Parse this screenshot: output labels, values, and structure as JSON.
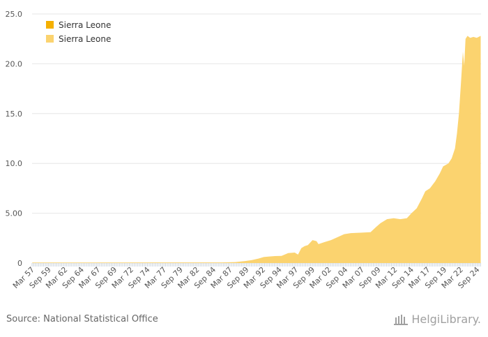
{
  "chart_data": {
    "type": "area",
    "title": "",
    "xlabel": "",
    "ylabel": "",
    "ylim": [
      0,
      25
    ],
    "yticks": [
      "0",
      "5.00",
      "10.0",
      "15.0",
      "20.0",
      "25.0"
    ],
    "ytick_values": [
      0,
      5,
      10,
      15,
      20,
      25
    ],
    "legend": {
      "placement": "top-left",
      "entries": [
        {
          "label": "Sierra Leone",
          "color": "#f5b000"
        },
        {
          "label": "Sierra Leone",
          "color": "#fbd36f"
        }
      ]
    },
    "xtick_labels": [
      "Mar 57",
      "Sep 59",
      "Mar 62",
      "Sep 64",
      "Mar 67",
      "Sep 69",
      "Mar 72",
      "Sep 74",
      "Mar 77",
      "Sep 79",
      "Mar 82",
      "Sep 84",
      "Mar 87",
      "Sep 89",
      "Mar 92",
      "Sep 94",
      "Mar 97",
      "Sep 99",
      "Mar 02",
      "Sep 04",
      "Mar 07",
      "Sep 09",
      "Mar 12",
      "Sep 14",
      "Mar 17",
      "Sep 19",
      "Mar 22",
      "Sep 24"
    ],
    "x_start": 1957.17,
    "x_end": 2025.25,
    "series": [
      {
        "name": "Sierra Leone",
        "color": "#fbd36f",
        "points": [
          [
            1957.2,
            0.05
          ],
          [
            1986.0,
            0.06
          ],
          [
            1988.0,
            0.1
          ],
          [
            1989.5,
            0.2
          ],
          [
            1990.5,
            0.3
          ],
          [
            1991.5,
            0.45
          ],
          [
            1992.3,
            0.6
          ],
          [
            1993.0,
            0.65
          ],
          [
            1994.0,
            0.7
          ],
          [
            1995.0,
            0.72
          ],
          [
            1996.0,
            1.0
          ],
          [
            1997.0,
            1.05
          ],
          [
            1997.5,
            0.85
          ],
          [
            1998.0,
            1.5
          ],
          [
            1998.5,
            1.7
          ],
          [
            1999.0,
            1.8
          ],
          [
            1999.7,
            2.3
          ],
          [
            2000.3,
            2.2
          ],
          [
            2000.6,
            1.9
          ],
          [
            2001.5,
            2.1
          ],
          [
            2002.5,
            2.3
          ],
          [
            2003.5,
            2.6
          ],
          [
            2004.5,
            2.9
          ],
          [
            2005.5,
            3.0
          ],
          [
            2007.0,
            3.05
          ],
          [
            2008.5,
            3.1
          ],
          [
            2009.3,
            3.6
          ],
          [
            2010.0,
            4.0
          ],
          [
            2011.0,
            4.4
          ],
          [
            2012.0,
            4.5
          ],
          [
            2013.0,
            4.4
          ],
          [
            2014.0,
            4.5
          ],
          [
            2014.7,
            5.0
          ],
          [
            2015.5,
            5.5
          ],
          [
            2016.3,
            6.5
          ],
          [
            2016.8,
            7.2
          ],
          [
            2017.5,
            7.5
          ],
          [
            2018.3,
            8.2
          ],
          [
            2019.0,
            9.0
          ],
          [
            2019.5,
            9.7
          ],
          [
            2020.3,
            10.0
          ],
          [
            2020.8,
            10.5
          ],
          [
            2021.3,
            11.5
          ],
          [
            2021.6,
            13.0
          ],
          [
            2021.9,
            15.0
          ],
          [
            2022.2,
            18.0
          ],
          [
            2022.5,
            21.2
          ],
          [
            2022.7,
            19.8
          ],
          [
            2022.9,
            22.5
          ],
          [
            2023.2,
            22.8
          ],
          [
            2023.6,
            22.6
          ],
          [
            2024.1,
            22.7
          ],
          [
            2024.6,
            22.6
          ],
          [
            2025.2,
            22.8
          ]
        ]
      }
    ]
  },
  "footer": {
    "source": "Source: National Statistical Office",
    "logo_text": "HelgiLibrary."
  },
  "colors": {
    "area": "#fbd36f",
    "legend_dark": "#f5b000",
    "grid": "#e6e6e6",
    "axis_text": "#555555"
  }
}
